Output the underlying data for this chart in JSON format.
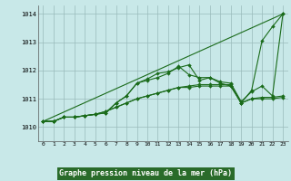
{
  "title": "Graphe pression niveau de la mer (hPa)",
  "background_color": "#c8e8e8",
  "plot_bg": "#c8e8e8",
  "grid_color": "#99bbbb",
  "line_color": "#1a6b1a",
  "xlabel_bg": "#2a6b2a",
  "xlabel_fg": "#ffffff",
  "xlim": [
    -0.5,
    23.5
  ],
  "ylim": [
    1009.5,
    1014.3
  ],
  "yticks": [
    1010,
    1011,
    1012,
    1013,
    1014
  ],
  "xticks": [
    0,
    1,
    2,
    3,
    4,
    5,
    6,
    7,
    8,
    9,
    10,
    11,
    12,
    13,
    14,
    15,
    16,
    17,
    18,
    19,
    20,
    21,
    22,
    23
  ],
  "series": [
    {
      "x": [
        0,
        1,
        2,
        3,
        4,
        5,
        6,
        7,
        8,
        9,
        10,
        11,
        12,
        13,
        14,
        15,
        16,
        17,
        18,
        19,
        20,
        21,
        22,
        23
      ],
      "y": [
        1010.2,
        1010.2,
        1010.35,
        1010.35,
        1010.4,
        1010.45,
        1010.5,
        1010.85,
        1011.1,
        1011.55,
        1011.65,
        1011.75,
        1011.9,
        1012.15,
        1011.85,
        1011.75,
        1011.75,
        1011.6,
        1011.55,
        1010.9,
        1011.25,
        1011.45,
        1011.1,
        1014.0
      ],
      "marker": true
    },
    {
      "x": [
        0,
        1,
        2,
        3,
        4,
        5,
        6,
        7,
        8,
        9,
        10,
        11,
        12,
        13,
        14,
        15,
        16,
        17,
        18,
        19,
        20,
        21,
        22,
        23
      ],
      "y": [
        1010.2,
        1010.2,
        1010.35,
        1010.35,
        1010.4,
        1010.45,
        1010.5,
        1010.85,
        1011.1,
        1011.55,
        1011.7,
        1011.9,
        1011.95,
        1012.1,
        1012.2,
        1011.65,
        1011.75,
        1011.55,
        1011.45,
        1010.85,
        1011.3,
        1013.05,
        1013.55,
        1014.0
      ],
      "marker": true
    },
    {
      "x": [
        0,
        23
      ],
      "y": [
        1010.2,
        1014.0
      ],
      "marker": false
    },
    {
      "x": [
        0,
        1,
        2,
        3,
        4,
        5,
        6,
        7,
        8,
        9,
        10,
        11,
        12,
        13,
        14,
        15,
        16,
        17,
        18,
        19,
        20,
        21,
        22,
        23
      ],
      "y": [
        1010.2,
        1010.2,
        1010.35,
        1010.35,
        1010.4,
        1010.45,
        1010.55,
        1010.7,
        1010.85,
        1011.0,
        1011.1,
        1011.2,
        1011.3,
        1011.4,
        1011.45,
        1011.5,
        1011.5,
        1011.5,
        1011.5,
        1010.85,
        1011.0,
        1011.05,
        1011.05,
        1011.1
      ],
      "marker": true
    },
    {
      "x": [
        0,
        1,
        2,
        3,
        4,
        5,
        6,
        7,
        8,
        9,
        10,
        11,
        12,
        13,
        14,
        15,
        16,
        17,
        18,
        19,
        20,
        21,
        22,
        23
      ],
      "y": [
        1010.2,
        1010.2,
        1010.35,
        1010.35,
        1010.4,
        1010.45,
        1010.55,
        1010.7,
        1010.85,
        1011.0,
        1011.1,
        1011.2,
        1011.3,
        1011.4,
        1011.4,
        1011.45,
        1011.45,
        1011.45,
        1011.45,
        1010.85,
        1011.0,
        1011.0,
        1011.0,
        1011.05
      ],
      "marker": true
    }
  ]
}
